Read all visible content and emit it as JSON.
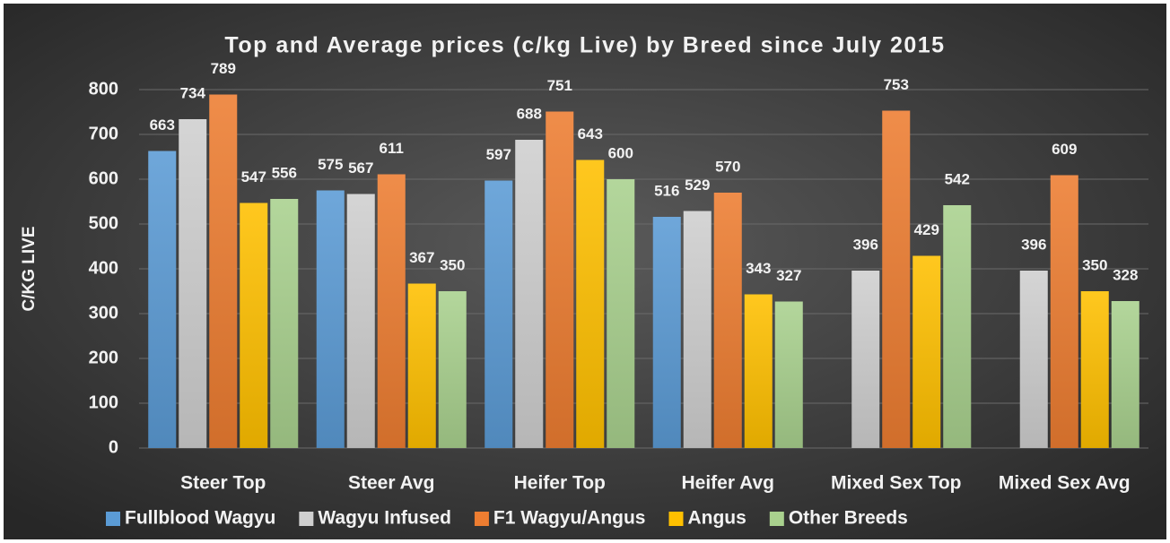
{
  "chart_data": {
    "type": "bar",
    "title": "Top and Average prices (c/kg Live) by Breed since July 2015",
    "y_axis_label": "C/KG LIVE",
    "categories": [
      "Steer Top",
      "Steer Avg",
      "Heifer Top",
      "Heifer Avg",
      "Mixed Sex Top",
      "Mixed Sex Avg"
    ],
    "series": [
      {
        "name": "Fullblood Wagyu",
        "color": "#5b9bd5",
        "values": [
          663,
          575,
          597,
          516,
          null,
          null
        ]
      },
      {
        "name": "Wagyu Infused",
        "color": "#cfcfcf",
        "values": [
          734,
          567,
          688,
          529,
          396,
          396
        ]
      },
      {
        "name": "F1 Wagyu/Angus",
        "color": "#ed7d31",
        "values": [
          789,
          611,
          751,
          570,
          753,
          609
        ]
      },
      {
        "name": "Angus",
        "color": "#ffc000",
        "values": [
          547,
          367,
          643,
          343,
          429,
          350
        ]
      },
      {
        "name": "Other Breeds",
        "color": "#a9d18e",
        "values": [
          556,
          350,
          600,
          327,
          542,
          328
        ]
      }
    ],
    "ylim": [
      0,
      800
    ],
    "yticks": [
      0,
      100,
      200,
      300,
      400,
      500,
      600,
      700,
      800
    ],
    "grid": true,
    "legend": "bottom"
  }
}
